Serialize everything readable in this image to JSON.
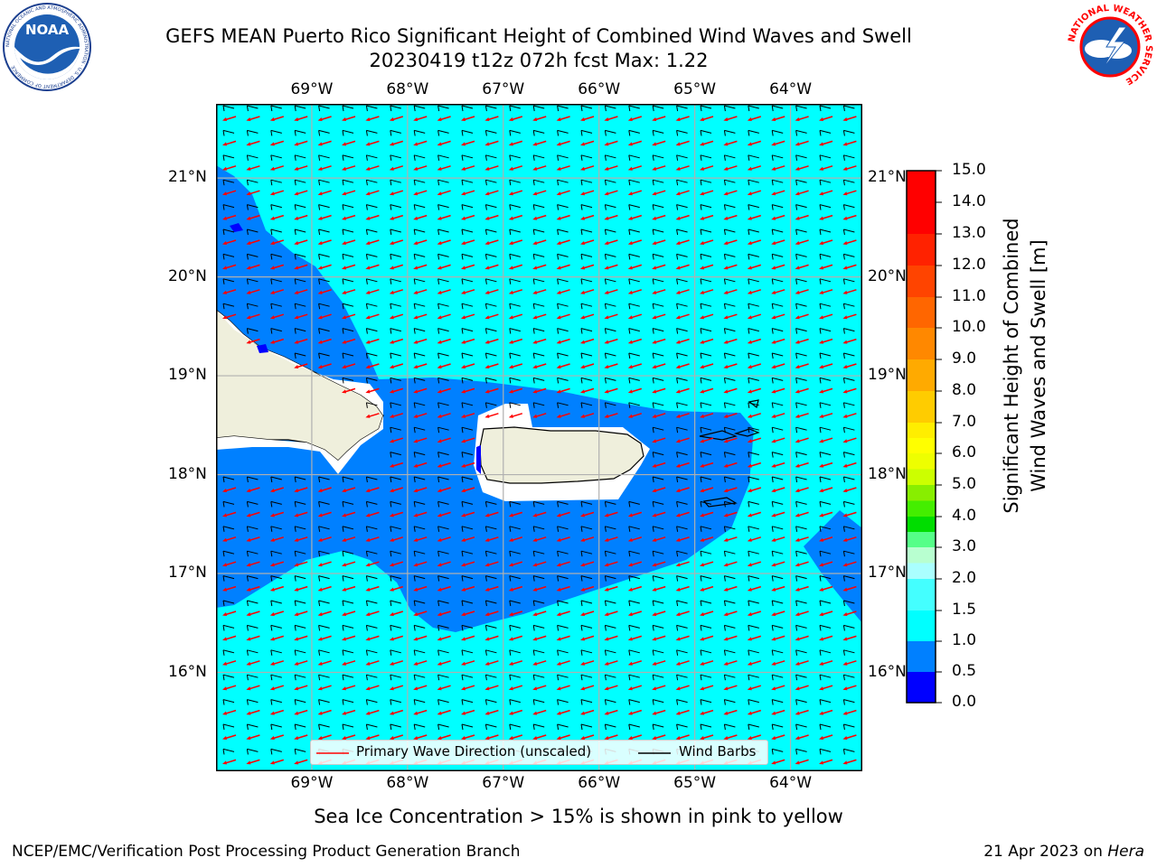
{
  "header": {
    "title_line1": "GEFS MEAN Puerto Rico Significant Height of Combined Wind Waves and Swell",
    "title_line2": "20230419 t12z 072h fcst   Max: 1.22"
  },
  "logos": {
    "left": {
      "name": "NOAA logo",
      "text": "NOAA",
      "ring_text": "NATIONAL OCEANIC AND ATMOSPHERIC ADMINISTRATION · U.S. DEPARTMENT OF COMMERCE"
    },
    "right": {
      "name": "National Weather Service logo",
      "ring_text": "NATIONAL WEATHER SERVICE"
    }
  },
  "map": {
    "lon_ticks": [
      "69°W",
      "68°W",
      "67°W",
      "66°W",
      "65°W",
      "64°W"
    ],
    "lat_ticks": [
      "21°N",
      "20°N",
      "19°N",
      "18°N",
      "17°N",
      "16°N"
    ],
    "lon_values": [
      -69,
      -68,
      -67,
      -66,
      -65,
      -64
    ],
    "lat_values": [
      21,
      20,
      19,
      18,
      17,
      16
    ],
    "extent": {
      "lon": [
        -70.0,
        -63.25
      ],
      "lat": [
        15.0,
        21.75
      ]
    },
    "colors": {
      "ocean_high": "#00ffff",
      "ocean_mid": "#0080ff",
      "ocean_low": "#0000ff",
      "land": "#efefdc",
      "wave_arrow": "#ff0000",
      "barb": "#000000"
    }
  },
  "legend": {
    "wave_label": "Primary Wave Direction (unscaled)",
    "barb_label": "Wind Barbs"
  },
  "colorbar": {
    "label_line1": "Significant Height of Combined",
    "label_line2": "Wind Waves and Swell [m]",
    "ticks": [
      "15.0",
      "14.0",
      "13.0",
      "12.0",
      "11.0",
      "10.0",
      "9.0",
      "8.0",
      "7.0",
      "6.0",
      "5.0",
      "4.0",
      "3.0",
      "2.0",
      "1.5",
      "1.0",
      "0.5",
      "0.0"
    ],
    "levels": [
      0.0,
      0.5,
      1.0,
      1.5,
      2.0,
      2.5,
      3.0,
      3.5,
      4.0,
      4.5,
      5.0,
      5.5,
      6.0,
      6.5,
      7.0,
      7.5,
      8.0,
      8.5,
      9.0,
      9.5,
      10.0,
      10.5,
      11.0,
      11.5,
      12.0,
      12.5,
      13.0,
      13.5,
      14.0,
      14.5,
      15.0
    ],
    "colors": [
      "#0000ff",
      "#0080ff",
      "#00ffff",
      "#44ffff",
      "#aaffff",
      "#55ff88",
      "#00dd00",
      "#44ee00",
      "#88ee00",
      "#ccff00",
      "#eeff00",
      "#ffff00",
      "#ffee00",
      "#ffcc00",
      "#ffaa00",
      "#ff8800",
      "#ff6600",
      "#ff4400",
      "#ff2200",
      "#ff0000"
    ]
  },
  "footer": {
    "subtitle": "Sea Ice Concentration > 15% is shown in pink to yellow",
    "left": "NCEP/EMC/Verification Post Processing Product Generation Branch",
    "right_date": "21 Apr 2023 on ",
    "right_host": "Hera"
  }
}
